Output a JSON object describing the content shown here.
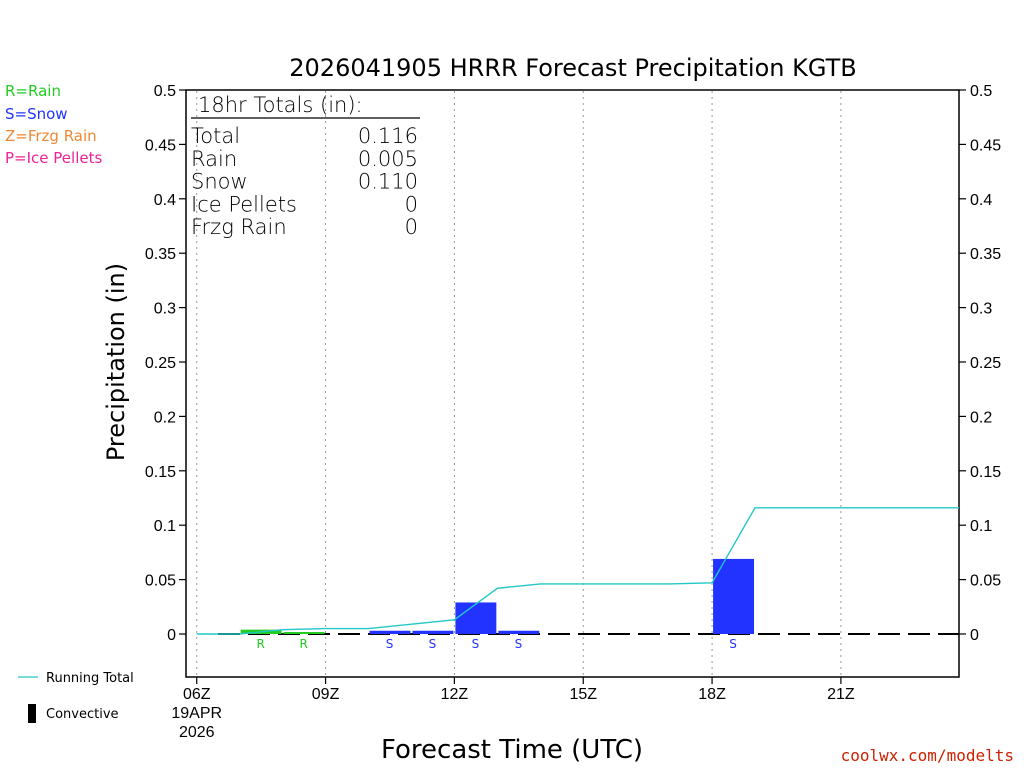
{
  "chart_data": {
    "type": "bar",
    "title": "2026041905 HRRR Forecast Precipitation KGTB",
    "xlabel": "Forecast Time (UTC)",
    "ylabel": "Precipitation (in)",
    "ylim": [
      -0.04,
      0.5
    ],
    "y_ticks": [
      0,
      0.05,
      0.1,
      0.15,
      0.2,
      0.25,
      0.3,
      0.35,
      0.4,
      0.45,
      0.5
    ],
    "y_tick_labels": [
      "0",
      "0.05",
      "0.1",
      "0.15",
      "0.2",
      "0.25",
      "0.3",
      "0.35",
      "0.4",
      "0.45",
      "0.5"
    ],
    "x_range_hours": [
      5.75,
      23.75
    ],
    "x_ticks": [
      {
        "hour": 6,
        "label": "06Z",
        "sublabels": [
          "19APR",
          "2026"
        ]
      },
      {
        "hour": 9,
        "label": "09Z"
      },
      {
        "hour": 12,
        "label": "12Z"
      },
      {
        "hour": 15,
        "label": "15Z"
      },
      {
        "hour": 18,
        "label": "18Z"
      },
      {
        "hour": 21,
        "label": "21Z"
      }
    ],
    "grid": "vertical dotted at x ticks",
    "bars": [
      {
        "hour": 8,
        "type": "R",
        "value": 0.004
      },
      {
        "hour": 9,
        "type": "R",
        "value": 0.001
      },
      {
        "hour": 11,
        "type": "S",
        "value": 0.003
      },
      {
        "hour": 12,
        "type": "S",
        "value": 0.003
      },
      {
        "hour": 13,
        "type": "S",
        "value": 0.029
      },
      {
        "hour": 14,
        "type": "S",
        "value": 0.003
      },
      {
        "hour": 19,
        "type": "S",
        "value": 0.069
      }
    ],
    "running_total": {
      "name": "Running Total",
      "x": [
        6,
        7,
        8,
        9,
        10,
        11,
        12,
        13,
        14,
        15,
        16,
        17,
        18,
        19,
        20,
        21,
        22,
        23,
        23.75
      ],
      "y": [
        0,
        0,
        0.004,
        0.005,
        0.005,
        0.009,
        0.013,
        0.042,
        0.046,
        0.046,
        0.046,
        0.046,
        0.047,
        0.116,
        0.116,
        0.116,
        0.116,
        0.116,
        0.116
      ]
    },
    "type_colors": {
      "R": "#22cc22",
      "S": "#2233ff",
      "Z": "#ee8833",
      "P": "#ee2299"
    },
    "line_color": "#22c7c7"
  },
  "legend_types": [
    {
      "text": "R=Rain",
      "color": "#22cc22"
    },
    {
      "text": "S=Snow",
      "color": "#2233ff"
    },
    {
      "text": "Z=Frzg Rain",
      "color": "#ee8833"
    },
    {
      "text": "P=Ice Pellets",
      "color": "#ee2299"
    }
  ],
  "totals": {
    "header": "18hr Totals (in):",
    "rows": [
      {
        "label": "Total",
        "value": "0.116"
      },
      {
        "label": "Rain",
        "value": "0.005"
      },
      {
        "label": "Snow",
        "value": "0.110"
      },
      {
        "label": "Ice Pellets",
        "value": "0"
      },
      {
        "label": "Frzg Rain",
        "value": "0"
      }
    ]
  },
  "bottom_legend": {
    "running_total": "Running Total",
    "convective": "Convective"
  },
  "credit": "coolwx.com/modelts"
}
